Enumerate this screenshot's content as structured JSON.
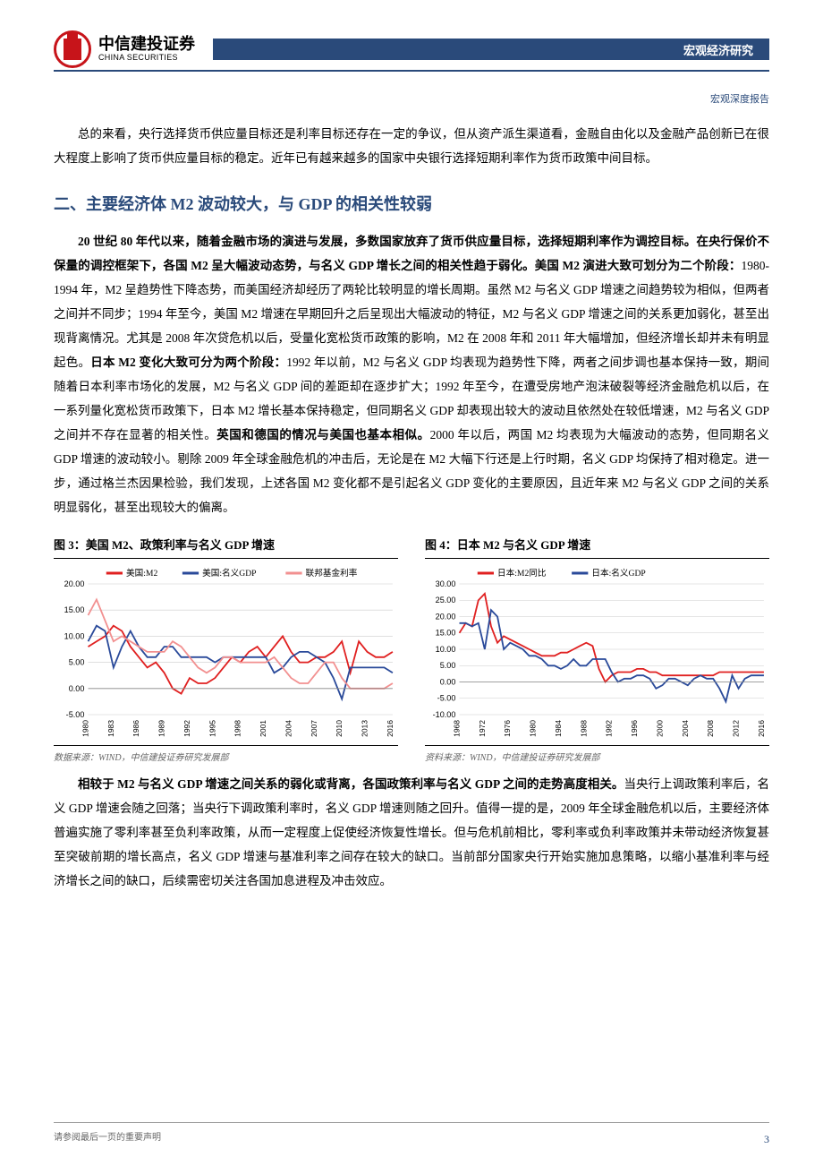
{
  "header": {
    "logo_cn": "中信建投证券",
    "logo_en": "CHINA SECURITIES",
    "bar_text": "宏观经济研究",
    "bar_bg": "#2a4a7a",
    "logo_color": "#c7141a"
  },
  "subheader": "宏观深度报告",
  "intro_para": "总的来看，央行选择货币供应量目标还是利率目标还存在一定的争议，但从资产派生渠道看，金融自由化以及金融产品创新已在很大程度上影响了货币供应量目标的稳定。近年已有越来越多的国家中央银行选择短期利率作为货币政策中间目标。",
  "section_title": "二、主要经济体 M2 波动较大，与 GDP 的相关性较弱",
  "body_p1_bold1": "20 世纪 80 年代以来，随着金融市场的演进与发展，多数国家放弃了货币供应量目标，选择短期利率作为调控目标。",
  "body_p1_bold2": "在央行保价不保量的调控框架下，各国 M2 呈大幅波动态势，与名义 GDP 增长之间的相关性趋于弱化。美国 M2 演进大致可划分为二个阶段：",
  "body_p1_a": "1980-1994 年，M2 呈趋势性下降态势，而美国经济却经历了两轮比较明显的增长周期。虽然 M2 与名义 GDP 增速之间趋势较为相似，但两者之间并不同步；1994 年至今，美国 M2 增速在早期回升之后呈现出大幅波动的特征，M2 与名义 GDP 增速之间的关系更加弱化，甚至出现背离情况。尤其是 2008 年次贷危机以后，受量化宽松货币政策的影响，M2 在 2008 年和 2011 年大幅增加，但经济增长却并未有明显起色。",
  "body_p1_bold3": "日本 M2 变化大致可分为两个阶段：",
  "body_p1_b": "1992 年以前，M2 与名义 GDP 均表现为趋势性下降，两者之间步调也基本保持一致，期间随着日本利率市场化的发展，M2 与名义 GDP 间的差距却在逐步扩大；1992 年至今，在遭受房地产泡沫破裂等经济金融危机以后，在一系列量化宽松货币政策下，日本 M2 增长基本保持稳定，但同期名义 GDP 却表现出较大的波动且依然处在较低增速，M2 与名义 GDP 之间并不存在显著的相关性。",
  "body_p1_bold4": "英国和德国的情况与美国也基本相似。",
  "body_p1_c": "2000 年以后，两国 M2 均表现为大幅波动的态势，但同期名义 GDP 增速的波动较小。剔除 2009 年全球金融危机的冲击后，无论是在 M2 大幅下行还是上行时期，名义 GDP 均保持了相对稳定。进一步，通过格兰杰因果检验，我们发现，上述各国 M2 变化都不是引起名义 GDP 变化的主要原因，且近年来 M2 与名义 GDP 之间的关系明显弱化，甚至出现较大的偏离。",
  "chart3": {
    "title": "图 3：美国 M2、政策利率与名义 GDP 增速",
    "source": "数据来源：WIND，中信建投证券研究发展部",
    "type": "line",
    "legend": [
      "美国:M2",
      "美国:名义GDP",
      "联邦基金利率"
    ],
    "legend_colors": [
      "#e02020",
      "#2a4a9a",
      "#f29090"
    ],
    "ylim": [
      -5,
      20
    ],
    "yticks": [
      -5,
      0,
      5,
      10,
      15,
      20
    ],
    "xticks": [
      "1980",
      "1983",
      "1986",
      "1989",
      "1992",
      "1995",
      "1998",
      "2001",
      "2004",
      "2007",
      "2010",
      "2013",
      "2016"
    ],
    "grid_color": "#cccccc",
    "line_width": 1.8,
    "series": {
      "m2": [
        8,
        9,
        10,
        12,
        11,
        8,
        6,
        4,
        5,
        3,
        0,
        -1,
        2,
        1,
        1,
        2,
        4,
        6,
        5,
        7,
        8,
        6,
        8,
        10,
        7,
        5,
        5,
        6,
        6,
        7,
        9,
        3,
        9,
        7,
        6,
        6,
        7
      ],
      "gdp": [
        9,
        12,
        11,
        4,
        8,
        11,
        8,
        6,
        6,
        8,
        8,
        6,
        6,
        6,
        6,
        5,
        6,
        6,
        6,
        6,
        6,
        6,
        3,
        4,
        6,
        7,
        7,
        6,
        5,
        2,
        -2,
        4,
        4,
        4,
        4,
        4,
        3
      ],
      "rate": [
        14,
        17,
        13,
        9,
        10,
        9,
        8,
        7,
        7,
        7,
        9,
        8,
        6,
        4,
        3,
        4,
        6,
        6,
        5,
        5,
        5,
        5,
        6,
        4,
        2,
        1,
        1,
        3,
        5,
        5,
        2,
        0,
        0,
        0,
        0,
        0,
        1
      ]
    }
  },
  "chart4": {
    "title": "图 4：日本 M2 与名义 GDP 增速",
    "source": "资料来源：WIND，中信建投证券研究发展部",
    "type": "line",
    "legend": [
      "日本:M2同比",
      "日本:名义GDP"
    ],
    "legend_colors": [
      "#e02020",
      "#2a4a9a"
    ],
    "ylim": [
      -10,
      30
    ],
    "yticks": [
      -10,
      -5,
      0,
      5,
      10,
      15,
      20,
      25,
      30
    ],
    "xticks": [
      "1968",
      "1972",
      "1976",
      "1980",
      "1984",
      "1988",
      "1992",
      "1996",
      "2000",
      "2004",
      "2008",
      "2012",
      "2016"
    ],
    "grid_color": "#cccccc",
    "line_width": 1.8,
    "series": {
      "m2": [
        15,
        18,
        17,
        25,
        27,
        17,
        12,
        14,
        13,
        12,
        11,
        10,
        9,
        8,
        8,
        8,
        9,
        9,
        10,
        11,
        12,
        11,
        4,
        0,
        2,
        3,
        3,
        3,
        4,
        4,
        3,
        3,
        2,
        2,
        2,
        2,
        2,
        2,
        2,
        2,
        2,
        3,
        3,
        3,
        3,
        3,
        3,
        3,
        3
      ],
      "gdp": [
        18,
        18,
        17,
        18,
        10,
        22,
        20,
        10,
        12,
        11,
        10,
        8,
        8,
        7,
        5,
        5,
        4,
        5,
        7,
        5,
        5,
        7,
        7,
        7,
        3,
        0,
        1,
        1,
        2,
        2,
        1,
        -2,
        -1,
        1,
        1,
        0,
        -1,
        1,
        2,
        1,
        1,
        -2,
        -6,
        2,
        -2,
        1,
        2,
        2,
        2
      ]
    }
  },
  "body_p2_bold": "相较于 M2 与名义 GDP 增速之间关系的弱化或背离，各国政策利率与名义 GDP 之间的走势高度相关。",
  "body_p2": "当央行上调政策利率后，名义 GDP 增速会随之回落；当央行下调政策利率时，名义 GDP 增速则随之回升。值得一提的是，2009 年全球金融危机以后，主要经济体普遍实施了零利率甚至负利率政策，从而一定程度上促使经济恢复性增长。但与危机前相比，零利率或负利率政策并未带动经济恢复甚至突破前期的增长高点，名义 GDP 增速与基准利率之间存在较大的缺口。当前部分国家央行开始实施加息策略，以缩小基准利率与经济增长之间的缺口，后续需密切关注各国加息进程及冲击效应。",
  "footer": {
    "disclaimer": "请参阅最后一页的重要声明",
    "page": "3"
  }
}
